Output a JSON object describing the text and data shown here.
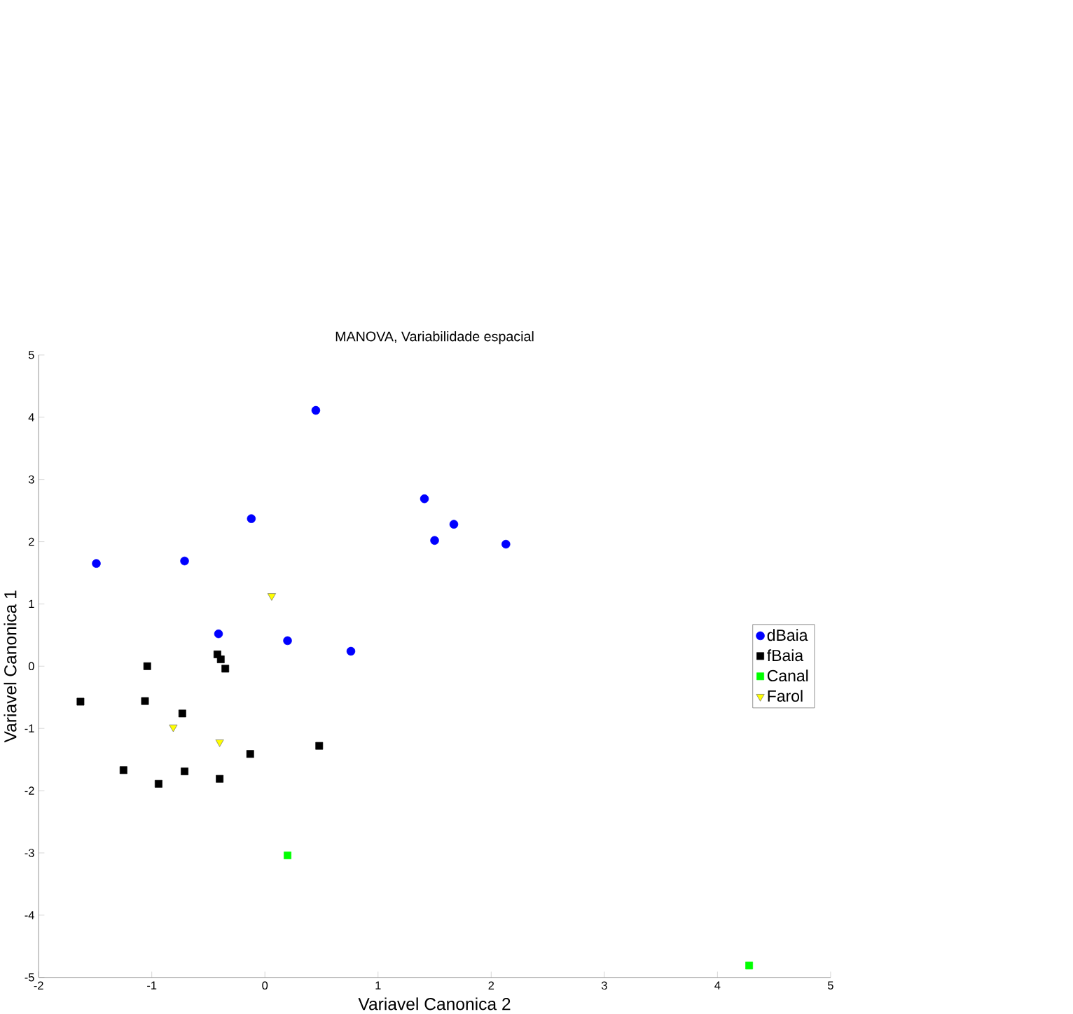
{
  "chart_data": {
    "type": "scatter",
    "title": "MANOVA, Variabilidade espacial",
    "xlabel": "Variavel Canonica 2",
    "ylabel": "Variavel Canonica 1",
    "xlim": [
      -2,
      5
    ],
    "ylim": [
      -5,
      5
    ],
    "xticks": [
      -2,
      -1,
      0,
      1,
      2,
      3,
      4,
      5
    ],
    "yticks": [
      -5,
      -4,
      -3,
      -2,
      -1,
      0,
      1,
      2,
      3,
      4,
      5
    ],
    "grid": false,
    "legend": "right",
    "series": [
      {
        "name": "dBaia",
        "color": "#0000ff",
        "marker": "circle",
        "x": [
          -1.49,
          -0.71,
          -0.12,
          0.45,
          1.41,
          1.5,
          1.67,
          2.13,
          -0.41,
          0.2,
          0.76
        ],
        "values": [
          1.65,
          1.69,
          2.37,
          4.11,
          2.69,
          2.02,
          2.28,
          1.96,
          0.52,
          0.41,
          0.24
        ]
      },
      {
        "name": "fBaia",
        "color": "#000000",
        "marker": "square",
        "x": [
          -1.04,
          -1.63,
          -1.06,
          -0.73,
          -0.42,
          -0.39,
          -0.35,
          -1.25,
          -0.94,
          -0.71,
          -0.4,
          -0.13,
          0.48
        ],
        "values": [
          0.0,
          -0.57,
          -0.56,
          -0.76,
          0.19,
          0.11,
          -0.04,
          -1.67,
          -1.89,
          -1.69,
          -1.81,
          -1.41,
          -1.28
        ]
      },
      {
        "name": "Canal",
        "color": "#00ff00",
        "marker": "square",
        "x": [
          0.2,
          4.28
        ],
        "values": [
          -3.04,
          -4.81
        ]
      },
      {
        "name": "Farol",
        "color": "#ffff00",
        "marker": "triangle",
        "x": [
          0.06,
          -0.81,
          -0.4
        ],
        "values": [
          1.13,
          -0.98,
          -1.22
        ]
      }
    ]
  }
}
